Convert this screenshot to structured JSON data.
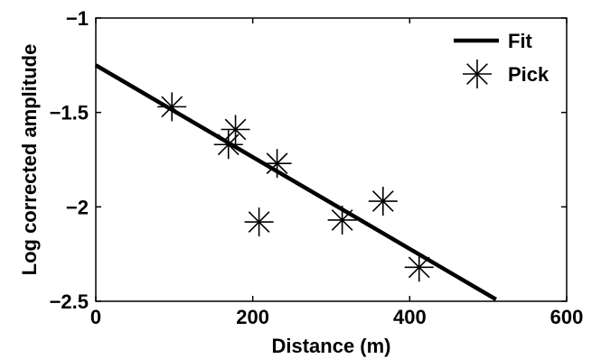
{
  "chart_data": {
    "type": "scatter",
    "title": "",
    "xlabel": "Distance (m)",
    "ylabel": "Log corrected amplitude",
    "xlim": [
      0,
      600
    ],
    "ylim": [
      -2.5,
      -1
    ],
    "xticks": [
      0,
      200,
      400,
      600
    ],
    "xtick_labels": [
      "0",
      "200",
      "400",
      "600"
    ],
    "yticks": [
      -2.5,
      -2,
      -1.5,
      -1
    ],
    "ytick_labels": [
      "−2.5",
      "−2",
      "−1.5",
      "−1"
    ],
    "grid": false,
    "legend_position": "top-right",
    "series": [
      {
        "name": "Fit",
        "type": "line",
        "color": "#000000",
        "x": [
          0,
          510
        ],
        "y": [
          -1.25,
          -2.49
        ]
      },
      {
        "name": "Pick",
        "type": "scatter",
        "marker": "asterisk",
        "color": "#000000",
        "x": [
          97,
          169,
          178,
          208,
          231,
          314,
          366,
          412
        ],
        "y": [
          -1.47,
          -1.67,
          -1.59,
          -2.08,
          -1.77,
          -2.07,
          -1.97,
          -2.32
        ]
      }
    ]
  }
}
